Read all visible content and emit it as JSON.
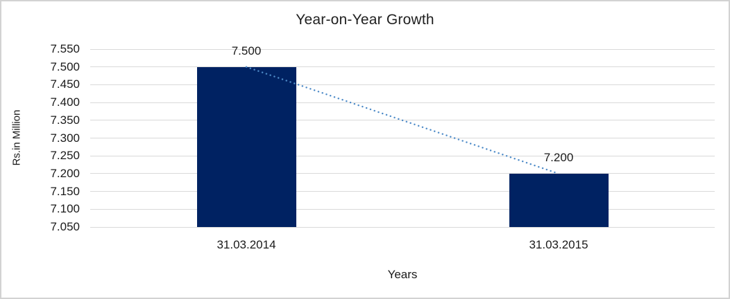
{
  "chart_data": {
    "type": "bar",
    "title": "Year-on-Year Growth",
    "xlabel": "Years",
    "ylabel": "Rs.in Million",
    "categories": [
      "31.03.2014",
      "31.03.2015"
    ],
    "values": [
      7.5,
      7.2
    ],
    "value_labels": [
      "7.500",
      "7.200"
    ],
    "ylim": [
      7.05,
      7.55
    ],
    "ytick_step": 0.05,
    "ytick_labels": [
      "7.050",
      "7.100",
      "7.150",
      "7.200",
      "7.250",
      "7.300",
      "7.350",
      "7.400",
      "7.450",
      "7.500",
      "7.550"
    ],
    "grid": "horizontal",
    "legend": "none",
    "trendline": {
      "style": "dotted",
      "from_value": 7.5,
      "to_value": 7.2
    },
    "colors": {
      "bar": "#002262",
      "trendline": "#4e8bc8",
      "gridline": "#d9d9d9",
      "frame_border": "#d2d2d2",
      "text": "#1a1a1a"
    }
  }
}
